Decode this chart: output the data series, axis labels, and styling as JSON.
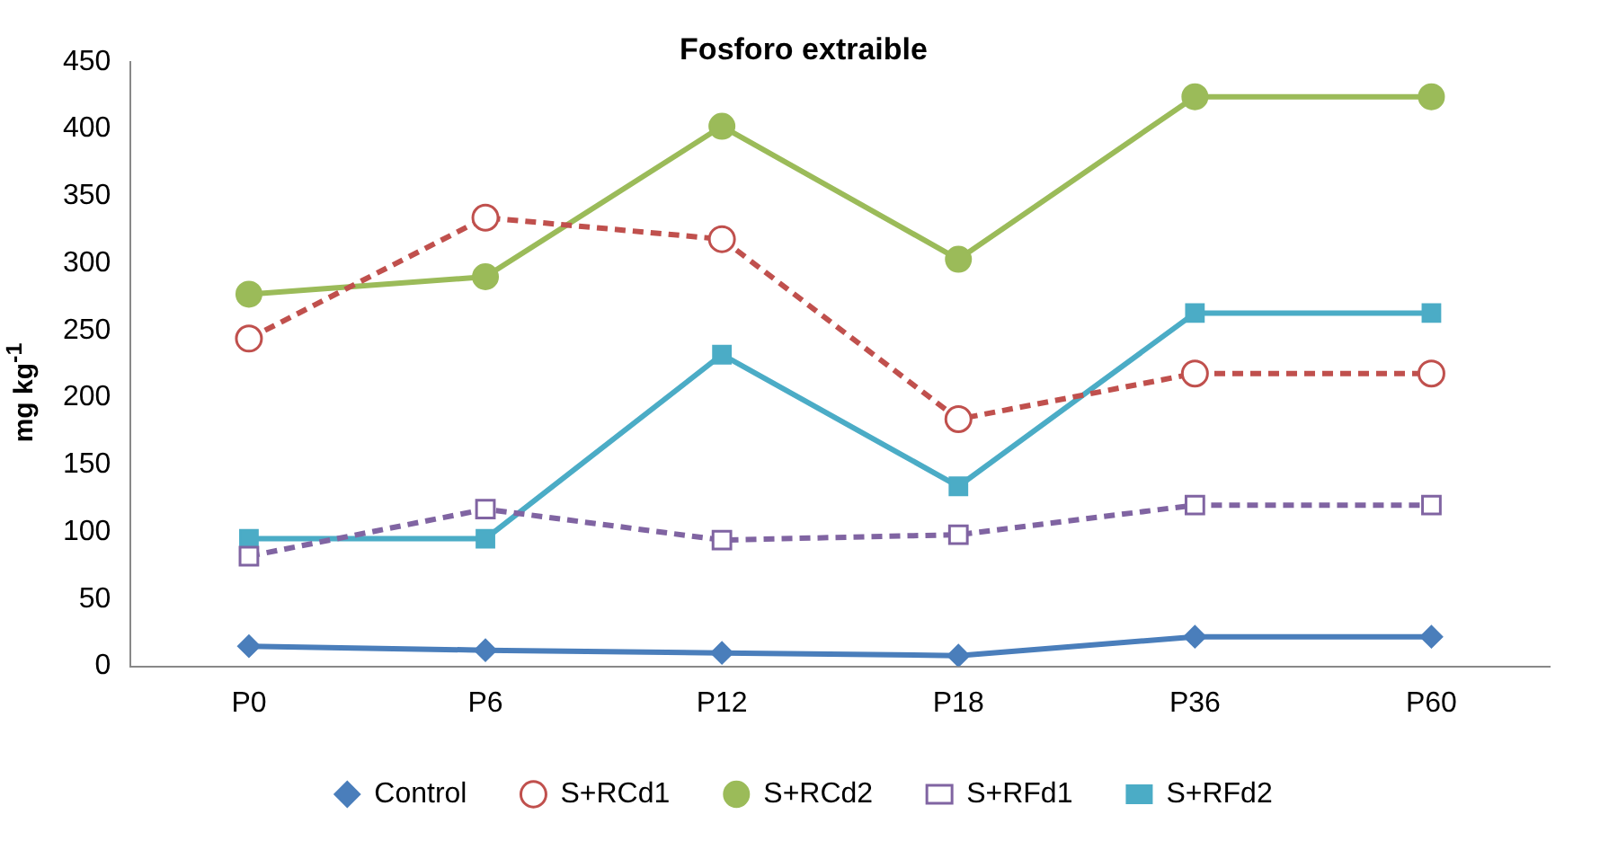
{
  "chart_data": {
    "type": "line",
    "title": "Fosforo extraible",
    "ylabel": "mg kg$^{-1}$",
    "categories": [
      "P0",
      "P6",
      "P12",
      "P18",
      "P36",
      "P60"
    ],
    "series": [
      {
        "name": "Control",
        "color": "#4a7ebb",
        "marker": "diamond",
        "line_style": "solid",
        "values": [
          15,
          12,
          10,
          8,
          22,
          22
        ]
      },
      {
        "name": "S+RCd1",
        "color": "#c0504d",
        "marker": "circle",
        "line_style": "dashed",
        "values": [
          244,
          334,
          318,
          184,
          218,
          218
        ]
      },
      {
        "name": "S+RCd2",
        "color": "#9bbb59",
        "marker": "circle",
        "line_style": "solid",
        "values": [
          277,
          290,
          402,
          303,
          424,
          424
        ]
      },
      {
        "name": "S+RFd1",
        "color": "#8064a2",
        "marker": "square",
        "line_style": "dashed",
        "values": [
          82,
          117,
          94,
          98,
          120,
          120
        ]
      },
      {
        "name": "S+RFd2",
        "color": "#4bacc6",
        "marker": "square",
        "line_style": "solid",
        "values": [
          95,
          95,
          232,
          134,
          263,
          263
        ]
      }
    ],
    "ylim": [
      0,
      450
    ],
    "yticks": [
      0,
      50,
      100,
      150,
      200,
      250,
      300,
      350,
      400,
      450
    ],
    "grid": false,
    "legend": "bottom"
  }
}
